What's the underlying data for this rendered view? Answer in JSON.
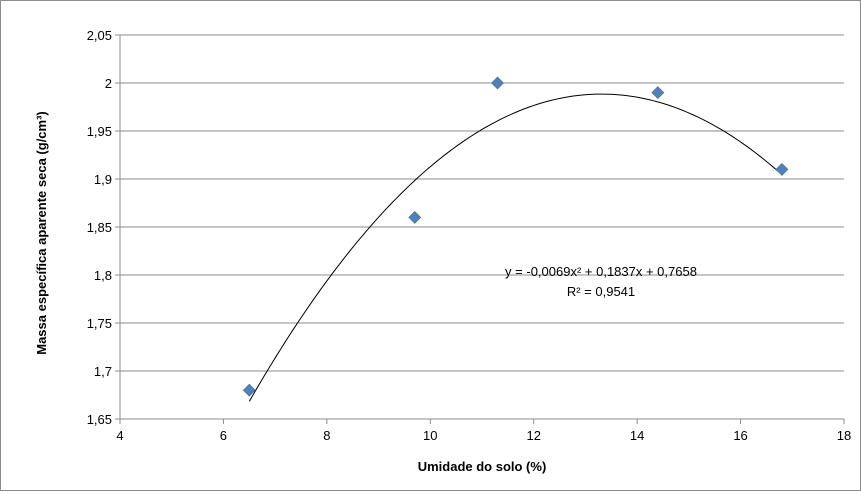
{
  "chart_data": {
    "type": "scatter",
    "title": "",
    "xlabel": "Umidade do solo (%)",
    "ylabel": "Massa específica aparente seca (g/cm³)",
    "xlim": [
      4,
      18
    ],
    "ylim": [
      1.65,
      2.05
    ],
    "x_ticks": [
      4,
      6,
      8,
      10,
      12,
      14,
      16,
      18
    ],
    "y_ticks": [
      1.65,
      1.7,
      1.75,
      1.8,
      1.85,
      1.9,
      1.95,
      2.0,
      2.05
    ],
    "x_tick_labels": [
      "4",
      "6",
      "8",
      "10",
      "12",
      "14",
      "16",
      "18"
    ],
    "y_tick_labels": [
      "1,65",
      "1,7",
      "1,75",
      "1,8",
      "1,85",
      "1,9",
      "1,95",
      "2",
      "2,05"
    ],
    "grid": "horizontal",
    "marker": "diamond",
    "colors": {
      "marker": "#4f81bd",
      "trendline": "#000000",
      "grid": "#8c8c8c"
    },
    "series": [
      {
        "x": [
          6.5,
          9.7,
          11.3,
          14.4,
          16.8
        ],
        "y": [
          1.68,
          1.86,
          2.0,
          1.99,
          1.91
        ]
      }
    ],
    "trendline": {
      "type": "polynomial",
      "order": 2,
      "coefficients": [
        -0.0069,
        0.1837,
        0.7658
      ],
      "equation_text": "y = -0,0069x² + 0,1837x + 0,7658",
      "r2_text": "R² = 0,9541"
    }
  }
}
